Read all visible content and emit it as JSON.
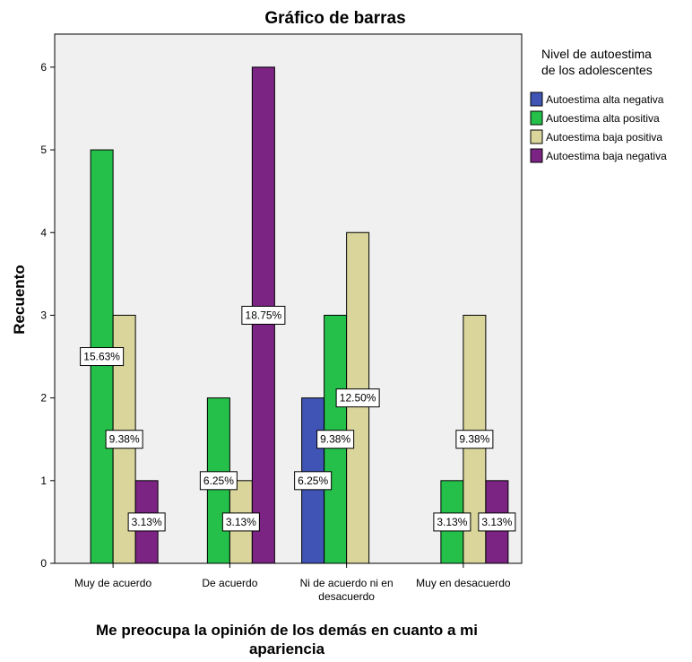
{
  "chart_data": {
    "type": "bar",
    "title": "Gráfico de barras",
    "xlabel": "Me preocupa la opinión de los demás en cuanto a mi apariencia",
    "xlabel_lines": [
      "Me preocupa la opinión de los demás en cuanto a mi",
      "apariencia"
    ],
    "ylabel": "Recuento",
    "ylim": [
      0,
      6.4
    ],
    "yticks": [
      "0",
      "1",
      "2",
      "3",
      "4",
      "5",
      "6"
    ],
    "grid": false,
    "legend_position": "right",
    "legend_title_lines": [
      "Nivel de autoestima",
      "de los adolescentes"
    ],
    "categories": [
      [
        "Muy de acuerdo"
      ],
      [
        "De acuerdo"
      ],
      [
        "Ni de acuerdo ni en",
        "desacuerdo"
      ],
      [
        "Muy en desacuerdo"
      ]
    ],
    "series": [
      {
        "name": "Autoestima alta negativa",
        "color": "#3f54b5",
        "values": [
          0,
          0,
          2,
          0
        ],
        "labels": [
          null,
          null,
          "6.25%",
          null
        ]
      },
      {
        "name": "Autoestima alta positiva",
        "color": "#24c04a",
        "values": [
          5,
          2,
          3,
          1
        ],
        "labels": [
          "15.63%",
          "6.25%",
          "9.38%",
          "3.13%"
        ]
      },
      {
        "name": "Autoestima baja positiva",
        "color": "#d9d59b",
        "values": [
          3,
          1,
          4,
          3
        ],
        "labels": [
          "9.38%",
          "3.13%",
          "12.50%",
          "9.38%"
        ]
      },
      {
        "name": "Autoestima baja negativa",
        "color": "#7b2484",
        "values": [
          1,
          6,
          0,
          1
        ],
        "labels": [
          "3.13%",
          "18.75%",
          null,
          "3.13%"
        ]
      }
    ]
  }
}
